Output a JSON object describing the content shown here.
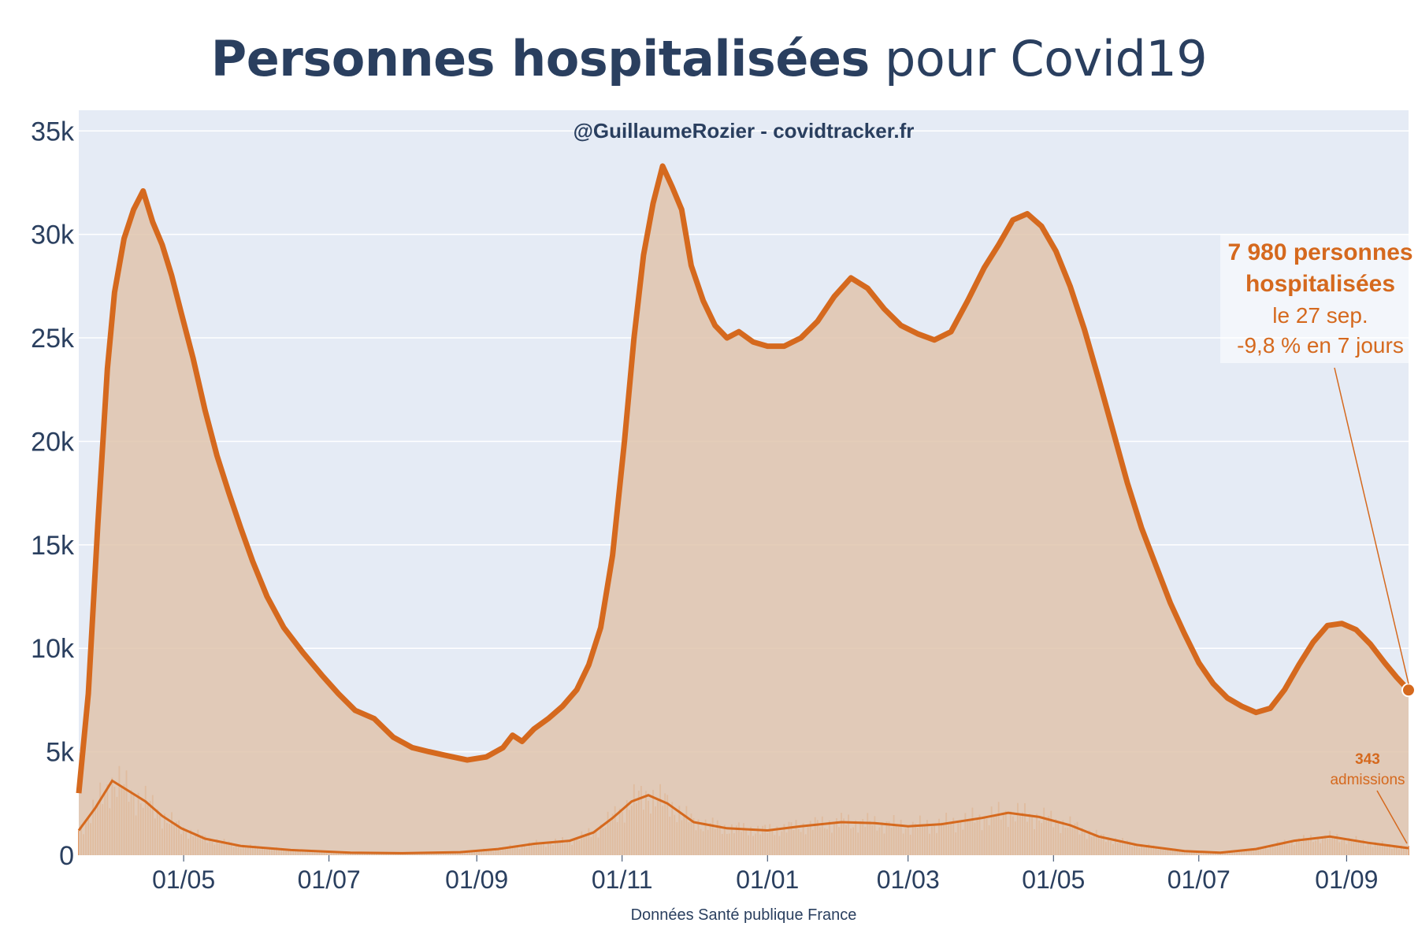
{
  "title": {
    "bold": "Personnes hospitalisées",
    "rest": " pour Covid19"
  },
  "watermark": "@GuillaumeRozier - covidtracker.fr",
  "source": "Données Santé publique France",
  "colors": {
    "line": "#d5691e",
    "fill": "#e0c4ad",
    "bars": "#d5691e",
    "plot_bg": "#e5ebf5",
    "grid": "#ffffff",
    "text": "#2a3f5f"
  },
  "annotation_hosp": {
    "line1": "7 980 personnes",
    "line2": "hospitalisées",
    "line3": "le 27 sep.",
    "line4": "-9,8 % en 7 jours"
  },
  "annotation_adm": {
    "value": "343",
    "label": "admissions"
  },
  "chart_data": {
    "type": "area",
    "xlabel": "",
    "ylabel": "",
    "xlim": [
      "2020-03-18",
      "2021-09-27"
    ],
    "ylim": [
      0,
      36000
    ],
    "yticks": [
      0,
      5000,
      10000,
      15000,
      20000,
      25000,
      30000,
      35000
    ],
    "ytick_labels": [
      "0",
      "5k",
      "10k",
      "15k",
      "20k",
      "25k",
      "30k",
      "35k"
    ],
    "xticks": [
      "2020-05-01",
      "2020-07-01",
      "2020-09-01",
      "2020-11-01",
      "2021-01-01",
      "2021-03-01",
      "2021-05-01",
      "2021-07-01",
      "2021-09-01"
    ],
    "xtick_labels": [
      "01/05",
      "01/07",
      "01/09",
      "01/11",
      "01/01",
      "01/03",
      "01/05",
      "01/07",
      "01/09"
    ],
    "grid": true,
    "series": [
      {
        "kind": "hospitalized",
        "points": [
          [
            "2020-03-18",
            3000
          ],
          [
            "2020-03-22",
            7800
          ],
          [
            "2020-03-26",
            16000
          ],
          [
            "2020-03-30",
            23500
          ],
          [
            "2020-04-02",
            27200
          ],
          [
            "2020-04-06",
            29800
          ],
          [
            "2020-04-10",
            31200
          ],
          [
            "2020-04-14",
            32100
          ],
          [
            "2020-04-18",
            30600
          ],
          [
            "2020-04-22",
            29500
          ],
          [
            "2020-04-26",
            28000
          ],
          [
            "2020-04-30",
            26200
          ],
          [
            "2020-05-05",
            24000
          ],
          [
            "2020-05-10",
            21500
          ],
          [
            "2020-05-15",
            19300
          ],
          [
            "2020-05-20",
            17500
          ],
          [
            "2020-05-25",
            15800
          ],
          [
            "2020-05-30",
            14200
          ],
          [
            "2020-06-05",
            12500
          ],
          [
            "2020-06-12",
            11000
          ],
          [
            "2020-06-20",
            9800
          ],
          [
            "2020-06-28",
            8700
          ],
          [
            "2020-07-05",
            7800
          ],
          [
            "2020-07-12",
            7000
          ],
          [
            "2020-07-20",
            6600
          ],
          [
            "2020-07-28",
            5700
          ],
          [
            "2020-08-05",
            5200
          ],
          [
            "2020-08-12",
            5000
          ],
          [
            "2020-08-20",
            4800
          ],
          [
            "2020-08-28",
            4600
          ],
          [
            "2020-09-05",
            4750
          ],
          [
            "2020-09-12",
            5200
          ],
          [
            "2020-09-16",
            5800
          ],
          [
            "2020-09-20",
            5500
          ],
          [
            "2020-09-25",
            6100
          ],
          [
            "2020-10-01",
            6600
          ],
          [
            "2020-10-07",
            7200
          ],
          [
            "2020-10-13",
            8000
          ],
          [
            "2020-10-18",
            9200
          ],
          [
            "2020-10-23",
            11000
          ],
          [
            "2020-10-28",
            14500
          ],
          [
            "2020-11-02",
            20000
          ],
          [
            "2020-11-06",
            25000
          ],
          [
            "2020-11-10",
            29000
          ],
          [
            "2020-11-14",
            31500
          ],
          [
            "2020-11-18",
            33300
          ],
          [
            "2020-11-22",
            32300
          ],
          [
            "2020-11-26",
            31200
          ],
          [
            "2020-11-30",
            28500
          ],
          [
            "2020-12-05",
            26800
          ],
          [
            "2020-12-10",
            25600
          ],
          [
            "2020-12-15",
            25000
          ],
          [
            "2020-12-20",
            25300
          ],
          [
            "2020-12-26",
            24800
          ],
          [
            "2021-01-01",
            24600
          ],
          [
            "2021-01-08",
            24600
          ],
          [
            "2021-01-15",
            25000
          ],
          [
            "2021-01-22",
            25800
          ],
          [
            "2021-01-29",
            27000
          ],
          [
            "2021-02-05",
            27900
          ],
          [
            "2021-02-12",
            27400
          ],
          [
            "2021-02-19",
            26400
          ],
          [
            "2021-02-26",
            25600
          ],
          [
            "2021-03-05",
            25200
          ],
          [
            "2021-03-12",
            24900
          ],
          [
            "2021-03-19",
            25300
          ],
          [
            "2021-03-26",
            26800
          ],
          [
            "2021-04-02",
            28400
          ],
          [
            "2021-04-08",
            29500
          ],
          [
            "2021-04-14",
            30700
          ],
          [
            "2021-04-20",
            31000
          ],
          [
            "2021-04-26",
            30400
          ],
          [
            "2021-05-02",
            29200
          ],
          [
            "2021-05-08",
            27500
          ],
          [
            "2021-05-14",
            25400
          ],
          [
            "2021-05-20",
            23000
          ],
          [
            "2021-05-26",
            20500
          ],
          [
            "2021-06-01",
            18000
          ],
          [
            "2021-06-07",
            15800
          ],
          [
            "2021-06-13",
            14000
          ],
          [
            "2021-06-19",
            12200
          ],
          [
            "2021-06-25",
            10700
          ],
          [
            "2021-07-01",
            9300
          ],
          [
            "2021-07-07",
            8300
          ],
          [
            "2021-07-13",
            7600
          ],
          [
            "2021-07-19",
            7200
          ],
          [
            "2021-07-25",
            6900
          ],
          [
            "2021-07-31",
            7100
          ],
          [
            "2021-08-06",
            8000
          ],
          [
            "2021-08-12",
            9200
          ],
          [
            "2021-08-18",
            10300
          ],
          [
            "2021-08-24",
            11100
          ],
          [
            "2021-08-30",
            11200
          ],
          [
            "2021-09-05",
            10900
          ],
          [
            "2021-09-11",
            10200
          ],
          [
            "2021-09-17",
            9300
          ],
          [
            "2021-09-22",
            8600
          ],
          [
            "2021-09-27",
            7980
          ]
        ]
      },
      {
        "kind": "admissions-7-day-average",
        "points": [
          [
            "2020-03-18",
            1200
          ],
          [
            "2020-03-25",
            2300
          ],
          [
            "2020-04-01",
            3600
          ],
          [
            "2020-04-08",
            3100
          ],
          [
            "2020-04-15",
            2600
          ],
          [
            "2020-04-22",
            1900
          ],
          [
            "2020-04-30",
            1300
          ],
          [
            "2020-05-10",
            800
          ],
          [
            "2020-05-25",
            450
          ],
          [
            "2020-06-15",
            250
          ],
          [
            "2020-07-10",
            120
          ],
          [
            "2020-08-01",
            100
          ],
          [
            "2020-08-25",
            150
          ],
          [
            "2020-09-10",
            300
          ],
          [
            "2020-09-25",
            550
          ],
          [
            "2020-10-10",
            700
          ],
          [
            "2020-10-20",
            1100
          ],
          [
            "2020-10-28",
            1800
          ],
          [
            "2020-11-05",
            2600
          ],
          [
            "2020-11-12",
            2900
          ],
          [
            "2020-11-20",
            2500
          ],
          [
            "2020-12-01",
            1600
          ],
          [
            "2020-12-15",
            1300
          ],
          [
            "2021-01-01",
            1200
          ],
          [
            "2021-01-15",
            1400
          ],
          [
            "2021-02-01",
            1600
          ],
          [
            "2021-02-15",
            1550
          ],
          [
            "2021-03-01",
            1400
          ],
          [
            "2021-03-15",
            1500
          ],
          [
            "2021-04-01",
            1800
          ],
          [
            "2021-04-12",
            2050
          ],
          [
            "2021-04-25",
            1850
          ],
          [
            "2021-05-08",
            1450
          ],
          [
            "2021-05-20",
            900
          ],
          [
            "2021-06-05",
            500
          ],
          [
            "2021-06-25",
            200
          ],
          [
            "2021-07-10",
            120
          ],
          [
            "2021-07-25",
            300
          ],
          [
            "2021-08-10",
            700
          ],
          [
            "2021-08-25",
            900
          ],
          [
            "2021-09-10",
            600
          ],
          [
            "2021-09-27",
            343
          ]
        ]
      }
    ],
    "last_values": {
      "hospitalized": 7980,
      "admissions": 343,
      "date": "2021-09-27"
    }
  }
}
